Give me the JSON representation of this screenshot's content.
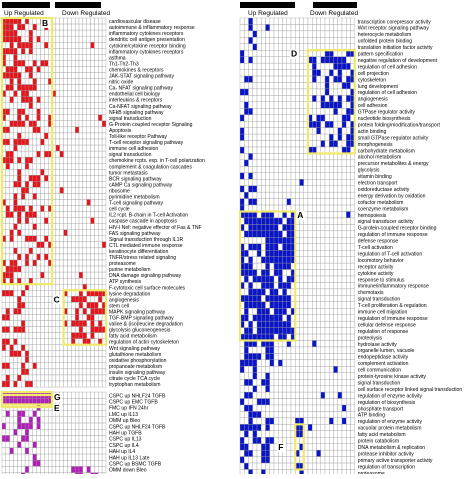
{
  "left_panel": {
    "header_up": "Up Regulated",
    "header_down": "Down Regulated",
    "color": "#e8141c",
    "rows": [
      "cardiovascular disease",
      "autoimmune & inflammatory response",
      "inflammatory cytokines receptors",
      "dendritic cell antigen presentation",
      "cytokine/cytokine receptor binding",
      "inflammatory cytokines receptors",
      "asthma",
      "Th1-Th2-Th3",
      "chemokines & receptors",
      "JAK-STAT signaling pathway",
      "nitric oxide",
      "Ca- NFAT signaling pathway",
      "endothelial cell biology",
      "interleukins & receptors",
      "Ca-NFAT signaling pathway",
      "NFkB signaling pathway",
      "signal transduction",
      "G-Protein coupled receptor Signaling",
      "Apoptosis",
      "Toll-like receptor Pathway",
      "T-cell receptor signaling pathway",
      "immune cell adhesion",
      "signal transduction",
      "chemokine rcpts. exp. in T-cell polarization",
      "complement & coagulation cascades",
      "tumor metastasis",
      "BCR signaling pathway",
      "cAMP Ca signaling pathway",
      "ribosome",
      "pyrimidine metabolism",
      "T-cell signaling pathway",
      "cell cycle",
      "IL2 rcpt. B-chain in T-cell Activation",
      "caspase cascade in apoptosis",
      "HIV-I Nef: negative effector of Fas & TNF",
      "FAS signaling pathway",
      "Signal transduction through IL1R",
      "CTL mediated immune response",
      "keratinocyte differentiation",
      "TNFR/stress related signaling",
      "proteasome",
      "purine metabolism",
      "DNA damage signaling pathway",
      "ATP synthesis",
      "F-cytotoxic cell surface molecules",
      "lysine degradation",
      "angiogenesis",
      "stem cell",
      "MAPK signaling pathway",
      "TGF-BMP signaling pathway",
      "valine & (iso)leucine degradation",
      "glycolysis gluconeogenesis",
      "fatty acid metabolism",
      "regulation of actin cytoskeleton",
      "Wnt signaling pathway",
      "glutathione metabolism",
      "oxidative phosphorylation",
      "propanoate metabolism",
      "insulin signaling pathway",
      "citrate cycle TCA cycle",
      "tryptophan metabolism"
    ],
    "group_rows": [
      "CSPC up NHLF24 TGFB",
      "CSPC up EMC TGFB",
      "FMC up IFN 24hr",
      "LMC up IL13",
      "OMM up Bleo",
      "CSPC up NHLF24 TGFB",
      "HAH up TGFB",
      "CSPC up IL13",
      "CSPC up IL4",
      "HAH up IL4",
      "HAH up IL13 Late",
      "CSPC up BSMC TGFB",
      "OMM down Bleo",
      "CSPC down IL13"
    ],
    "group_color": "#b020b8",
    "boxes": {
      "B": "B",
      "C": "C",
      "E": "E",
      "G": "G"
    }
  },
  "right_panel": {
    "header_up": "Up Regulated",
    "header_down": "Down Regulated",
    "color": "#0a14c8",
    "rows": [
      "transcription corepressor activity",
      "Wnt receptor signaling pathway",
      "heterocycle metabolism",
      "unfolded protein binding",
      "translation initiation factor activity",
      "pattern specification",
      "negative regulation of development",
      "regulation of cell adhesion",
      "cell projection",
      "cytoskeleton",
      "lung development",
      "regulation of cell adhesion",
      "angiogenesis",
      "cell adhesion",
      "GTPase regulator activity",
      "nucleotide biosynthesis",
      "protein folding/modification/transport",
      "actin binding",
      "small GTPase regulator activity",
      "morphogenesis",
      "carbohydrate metabolism",
      "alcohol metabolism",
      "precursor metabolites & energy",
      "glycolysis",
      "vitamin binding",
      "electron transport",
      "oxidoreductase activity",
      "energy derivation by oxidation",
      "cofactor metabolism",
      "coenzyme metabolism",
      "hemopoiesis",
      "signal transducer activity",
      "G-protein-coupled receptor binding",
      "regulation of immune response",
      "defense response",
      "T-cell activation",
      "regulation of T-cell activation",
      "locomotory behavior",
      "receptor activity",
      "cytokine activity",
      "response to stimulus",
      "immune/inflammatory response",
      "chemotaxis",
      "signal transduction",
      "T-cell proliferation & regulation",
      "immune cell migration",
      "regulation of immune response",
      "cellular defense response",
      "regulation of response",
      "proteolysis",
      "hydrolase activity",
      "organelle lumen, vacuole",
      "endopeptidase activity",
      "complement activation",
      "cell communication",
      "protein-tyrosine kinase activity",
      "signal transduction",
      "cell surface receptor linked signal transduction",
      "regulation of enzyme activity",
      "regulation of biosynthesis",
      "phosphate transport",
      "ATP binding",
      "regulation of enzyme activity",
      "vacuolar protein metabolism",
      "fatty acid metabolism",
      "protein catabolism",
      "DNA metabolism & replication",
      "protease inhibitor activity",
      "primary active transporter activity",
      "regulation of transcription",
      "proteasome"
    ],
    "boxes": {
      "A": "A",
      "D": "D",
      "F": "F"
    }
  }
}
